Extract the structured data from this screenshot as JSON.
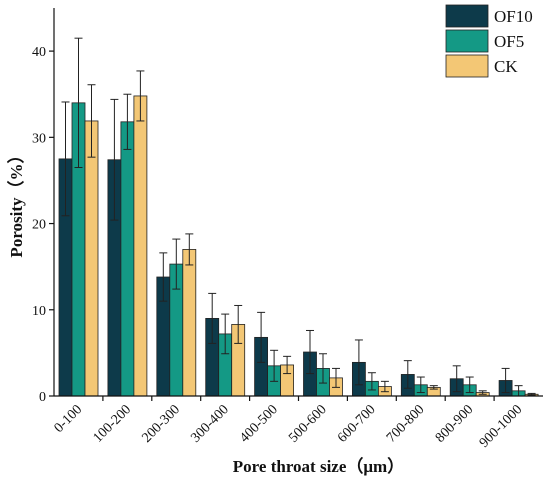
{
  "chart_data": {
    "type": "bar",
    "xlabel": "Pore throat size（μm）",
    "ylabel": "Porosity（%）",
    "ylim": [
      0,
      45
    ],
    "yticks": [
      0,
      10,
      20,
      30,
      40
    ],
    "legend_position": "top-right",
    "grid": false,
    "categories": [
      "0-100",
      "100-200",
      "200-300",
      "300-400",
      "400-500",
      "500-600",
      "600-700",
      "700-800",
      "800-900",
      "900-1000"
    ],
    "series": [
      {
        "name": "OF10",
        "color": "#0d3a4a",
        "values": [
          27.5,
          27.4,
          13.8,
          9.0,
          6.8,
          5.1,
          3.9,
          2.5,
          2.0,
          1.8
        ],
        "errors": [
          6.6,
          7.0,
          2.8,
          2.9,
          2.9,
          2.5,
          2.6,
          1.6,
          1.5,
          1.4
        ]
      },
      {
        "name": "OF5",
        "color": "#149985",
        "values": [
          34.0,
          31.8,
          15.3,
          7.2,
          3.5,
          3.2,
          1.7,
          1.3,
          1.3,
          0.6
        ],
        "errors": [
          7.5,
          3.2,
          2.9,
          2.3,
          1.8,
          1.7,
          1.0,
          0.9,
          0.9,
          0.6
        ]
      },
      {
        "name": "CK",
        "color": "#f3c775",
        "values": [
          31.9,
          34.8,
          17.0,
          8.3,
          3.6,
          2.1,
          1.1,
          1.0,
          0.4,
          0.2
        ],
        "errors": [
          4.2,
          2.9,
          1.8,
          2.2,
          1.0,
          1.1,
          0.6,
          0.2,
          0.2,
          0.1
        ]
      }
    ]
  }
}
